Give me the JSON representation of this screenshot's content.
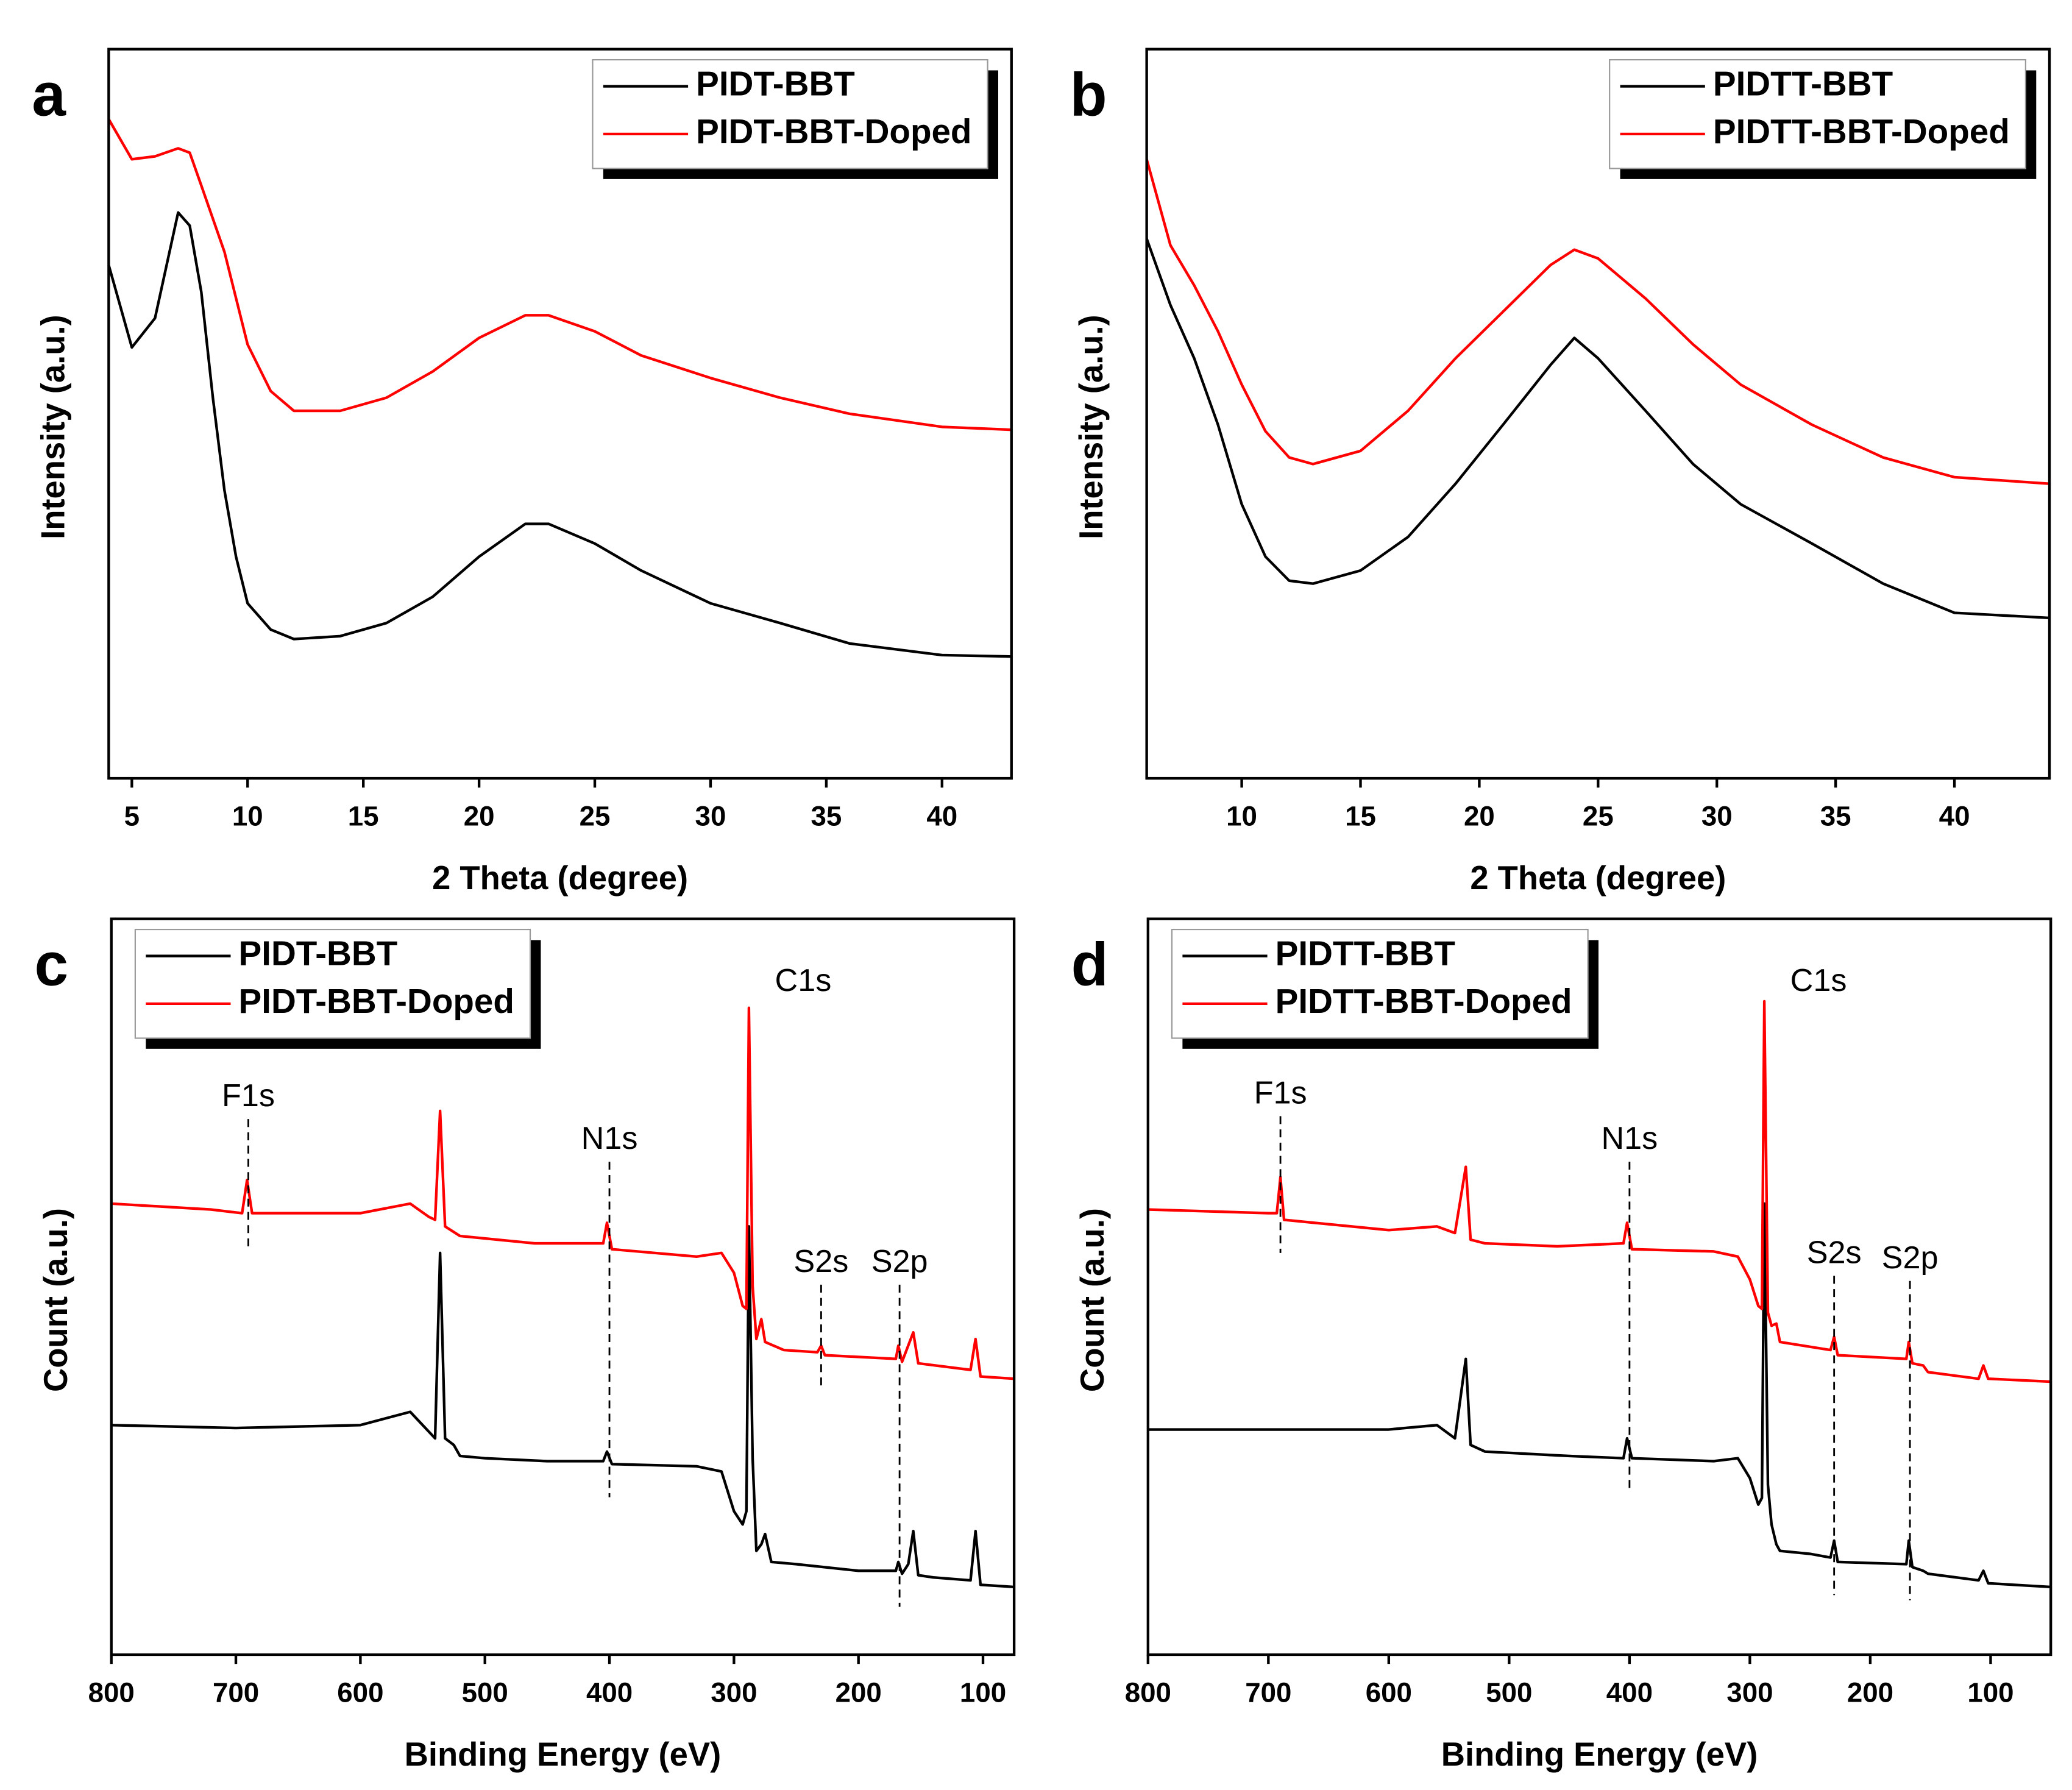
{
  "chart_data": [
    {
      "type": "line",
      "label": "a",
      "xlabel": "2 Theta (degree)",
      "ylabel": "Intensity (a.u.)",
      "xlim": [
        4,
        43
      ],
      "xticks": [
        5,
        10,
        15,
        20,
        25,
        30,
        35,
        40
      ],
      "ylim": [
        0,
        100
      ],
      "legend": "upper right",
      "series": [
        {
          "name": "PIDT-BBT",
          "color": "#000000",
          "x": [
            4,
            5,
            6,
            7,
            7.5,
            8,
            8.5,
            9,
            9.5,
            10,
            11,
            12,
            14,
            16,
            18,
            20,
            22,
            23,
            25,
            27,
            30,
            33,
            36,
            40,
            43
          ],
          "values": [
            70.4,
            59.1,
            63.1,
            77.6,
            75.8,
            66.7,
            52.2,
            39.5,
            30.4,
            24.0,
            20.4,
            19.1,
            19.5,
            21.3,
            24.9,
            30.4,
            34.9,
            34.9,
            32.2,
            28.5,
            24.0,
            21.3,
            18.5,
            16.9,
            16.7
          ]
        },
        {
          "name": "PIDT-BBT-Doped",
          "color": "#ff0000",
          "x": [
            4,
            5,
            6,
            7,
            7.5,
            8,
            9,
            10,
            11,
            12,
            14,
            16,
            18,
            20,
            22,
            23,
            25,
            27,
            30,
            33,
            36,
            40,
            43
          ],
          "values": [
            90.4,
            84.9,
            85.3,
            86.4,
            85.8,
            81.3,
            72.2,
            59.5,
            53.1,
            50.4,
            50.4,
            52.2,
            55.8,
            60.4,
            63.5,
            63.5,
            61.3,
            58.0,
            54.9,
            52.2,
            50.0,
            48.2,
            47.8
          ]
        }
      ]
    },
    {
      "type": "line",
      "label": "b",
      "xlabel": "2 Theta (degree)",
      "ylabel": "Intensity (a.u.)",
      "xlim": [
        6,
        44
      ],
      "xticks": [
        10,
        15,
        20,
        25,
        30,
        35,
        40
      ],
      "ylim": [
        0,
        100
      ],
      "legend": "upper right",
      "series": [
        {
          "name": "PIDTT-BBT",
          "color": "#000000",
          "x": [
            6,
            7,
            8,
            9,
            10,
            11,
            12,
            13,
            15,
            17,
            19,
            21,
            23,
            24,
            25,
            27,
            29,
            31,
            34,
            37,
            40,
            44
          ],
          "values": [
            74.0,
            64.9,
            57.6,
            48.5,
            37.6,
            30.4,
            27.1,
            26.7,
            28.5,
            33.1,
            40.4,
            48.5,
            56.7,
            60.4,
            57.6,
            50.4,
            43.1,
            37.6,
            32.2,
            26.7,
            22.7,
            22.0
          ]
        },
        {
          "name": "PIDTT-BBT-Doped",
          "color": "#ff0000",
          "x": [
            6,
            7,
            8,
            9,
            10,
            11,
            12,
            13,
            15,
            17,
            19,
            21,
            23,
            24,
            25,
            27,
            29,
            31,
            34,
            37,
            40,
            44
          ],
          "values": [
            84.9,
            73.1,
            67.6,
            61.3,
            54.0,
            47.6,
            44.0,
            43.1,
            44.9,
            50.4,
            57.6,
            64.0,
            70.4,
            72.5,
            71.3,
            65.8,
            59.5,
            54.0,
            48.5,
            44.0,
            41.3,
            40.4
          ]
        }
      ]
    },
    {
      "type": "line",
      "label": "c",
      "xlabel": "Binding Energy (eV)",
      "ylabel": "Count (a.u.)",
      "xlim": [
        800,
        75
      ],
      "xticks": [
        800,
        700,
        600,
        500,
        400,
        300,
        200,
        100
      ],
      "ylim": [
        0,
        100
      ],
      "legend": "upper left",
      "series": [
        {
          "name": "PIDT-BBT",
          "color": "#000000",
          "x": [
            800,
            700,
            600,
            560,
            545,
            540,
            536,
            532,
            525,
            520,
            500,
            450,
            405,
            402,
            398,
            330,
            310,
            300,
            293,
            290,
            288,
            285,
            282,
            278,
            275,
            270,
            250,
            200,
            170,
            168,
            165,
            160,
            156,
            152,
            140,
            110,
            106,
            102,
            75
          ],
          "values": [
            31.2,
            30.8,
            31.2,
            33.0,
            30.3,
            29.4,
            54.6,
            29.4,
            28.5,
            27.0,
            26.7,
            26.3,
            26.3,
            27.6,
            25.9,
            25.6,
            24.9,
            19.5,
            17.7,
            19.5,
            58.2,
            26.7,
            14.1,
            15.0,
            16.4,
            12.6,
            12.3,
            11.4,
            11.4,
            12.6,
            11.0,
            12.3,
            16.8,
            10.8,
            10.5,
            10.1,
            16.8,
            9.5,
            9.2
          ]
        },
        {
          "name": "PIDT-BBT-Doped",
          "color": "#ff0000",
          "x": [
            800,
            720,
            695,
            691,
            687,
            600,
            560,
            545,
            540,
            536,
            532,
            520,
            460,
            405,
            402,
            398,
            330,
            310,
            300,
            293,
            290,
            288,
            285,
            282,
            278,
            275,
            260,
            233,
            230,
            227,
            170,
            168,
            165,
            156,
            152,
            110,
            106,
            102,
            75
          ],
          "values": [
            61.3,
            60.5,
            60.0,
            64.5,
            60.0,
            60.0,
            61.3,
            59.5,
            59.1,
            73.9,
            58.2,
            56.9,
            55.9,
            55.9,
            58.7,
            55.1,
            54.1,
            54.6,
            51.9,
            47.4,
            47.0,
            87.9,
            50.1,
            42.9,
            45.6,
            42.5,
            41.4,
            41.1,
            42.0,
            40.7,
            40.2,
            42.0,
            39.8,
            43.8,
            39.6,
            38.7,
            42.9,
            37.8,
            37.5
          ]
        }
      ],
      "annotations": [
        {
          "text": "F1s",
          "x": 690,
          "dashed": true
        },
        {
          "text": "N1s",
          "x": 400,
          "dashed": true
        },
        {
          "text": "C1s",
          "x": 287,
          "dashed": false
        },
        {
          "text": "S2s",
          "x": 230,
          "dashed": true
        },
        {
          "text": "S2p",
          "x": 167,
          "dashed": true
        }
      ]
    },
    {
      "type": "line",
      "label": "d",
      "xlabel": "Binding Energy (eV)",
      "ylabel": "Count (a.u.)",
      "xlim": [
        800,
        50
      ],
      "xticks": [
        800,
        700,
        600,
        500,
        400,
        300,
        200,
        100
      ],
      "ylim": [
        0,
        100
      ],
      "legend": "upper left",
      "series": [
        {
          "name": "PIDTT-BBT",
          "color": "#000000",
          "x": [
            800,
            600,
            560,
            545,
            536,
            532,
            520,
            450,
            405,
            402,
            398,
            330,
            310,
            300,
            293,
            290,
            288,
            285,
            282,
            278,
            275,
            250,
            233,
            230,
            227,
            170,
            168,
            165,
            156,
            152,
            110,
            106,
            102,
            50
          ],
          "values": [
            30.6,
            30.6,
            31.2,
            29.4,
            40.2,
            28.5,
            27.6,
            27.0,
            26.7,
            29.4,
            26.7,
            26.3,
            26.7,
            24.0,
            20.4,
            21.3,
            61.3,
            23.1,
            17.7,
            15.0,
            14.1,
            13.7,
            13.2,
            15.5,
            12.6,
            12.3,
            15.5,
            11.9,
            11.4,
            11.0,
            10.1,
            11.4,
            9.7,
            9.2
          ]
        },
        {
          "name": "PIDTT-BBT-Doped",
          "color": "#ff0000",
          "x": [
            800,
            700,
            693,
            690,
            687,
            600,
            560,
            545,
            536,
            532,
            520,
            460,
            405,
            402,
            398,
            330,
            310,
            300,
            293,
            290,
            288,
            285,
            282,
            278,
            275,
            233,
            230,
            227,
            170,
            168,
            165,
            156,
            152,
            110,
            106,
            102,
            50
          ],
          "values": [
            60.5,
            60.0,
            60.0,
            64.9,
            59.1,
            57.7,
            58.2,
            57.3,
            66.3,
            56.4,
            55.9,
            55.5,
            55.9,
            58.7,
            55.1,
            54.8,
            54.1,
            51.0,
            47.4,
            47.0,
            88.8,
            46.5,
            44.7,
            45.0,
            42.5,
            41.4,
            43.2,
            40.7,
            40.2,
            42.5,
            39.6,
            39.3,
            38.4,
            37.5,
            39.3,
            37.5,
            37.1
          ]
        }
      ],
      "annotations": [
        {
          "text": "F1s",
          "x": 690,
          "dashed": true
        },
        {
          "text": "N1s",
          "x": 400,
          "dashed": true
        },
        {
          "text": "C1s",
          "x": 287,
          "dashed": false
        },
        {
          "text": "S2s",
          "x": 230,
          "dashed": true
        },
        {
          "text": "S2p",
          "x": 167,
          "dashed": true
        }
      ]
    }
  ]
}
